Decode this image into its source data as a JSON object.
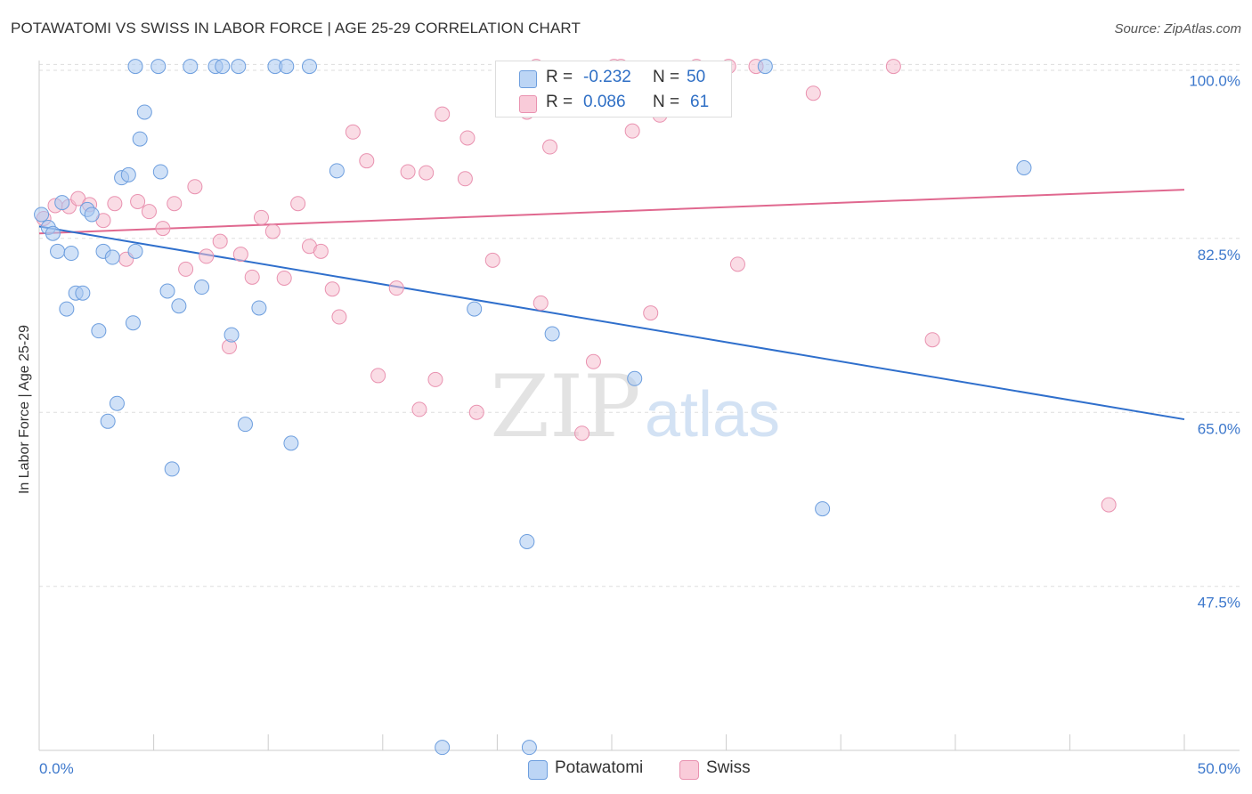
{
  "header": {
    "title": "POTAWATOMI VS SWISS IN LABOR FORCE | AGE 25-29 CORRELATION CHART",
    "source": "Source: ZipAtlas.com"
  },
  "watermark": {
    "zip": "ZIP",
    "atlas": "atlas"
  },
  "legend_stats": {
    "row1": {
      "r_label": "R =",
      "r_value": "-0.232",
      "n_label": "N =",
      "n_value": "50"
    },
    "row2": {
      "r_label": "R =",
      "r_value": "0.086",
      "n_label": "N =",
      "n_value": "61"
    }
  },
  "bottom_legend": {
    "item1": "Potawatomi",
    "item2": "Swiss"
  },
  "colors": {
    "blue_fill": "#a9c8f0",
    "blue_stroke": "#6d9ede",
    "blue_line": "#2f6fcc",
    "pink_fill": "#f6bfd0",
    "pink_stroke": "#e992b0",
    "pink_line": "#e0688f",
    "tick_label": "#3d78cc",
    "grid": "#dddddd"
  },
  "chart_data": {
    "type": "scatter",
    "title": "POTAWATOMI VS SWISS IN LABOR FORCE | AGE 25-29 CORRELATION CHART",
    "xlabel": "",
    "ylabel": "In Labor Force | Age 25-29",
    "xlim": [
      0,
      50
    ],
    "ylim": [
      31,
      102
    ],
    "x_tick_labels": [
      "0.0%",
      "50.0%"
    ],
    "y_ticks": [
      47.5,
      65.0,
      82.5,
      100.0
    ],
    "y_tick_labels": [
      "47.5%",
      "65.0%",
      "82.5%",
      "100.0%"
    ],
    "grid": "horizontal dashed",
    "legend_position": "bottom-center",
    "series": [
      {
        "name": "Potawatomi",
        "r": -0.232,
        "n": 50,
        "trend": {
          "x": [
            0,
            50
          ],
          "y": [
            83.7,
            64.3
          ]
        },
        "points": [
          [
            0.1,
            84.9
          ],
          [
            0.4,
            83.6
          ],
          [
            0.6,
            83.0
          ],
          [
            0.8,
            81.2
          ],
          [
            1.0,
            86.1
          ],
          [
            1.2,
            75.4
          ],
          [
            1.4,
            81.0
          ],
          [
            1.6,
            77.0
          ],
          [
            1.9,
            77.0
          ],
          [
            2.1,
            85.4
          ],
          [
            2.3,
            84.9
          ],
          [
            2.6,
            73.2
          ],
          [
            2.8,
            81.2
          ],
          [
            3.0,
            64.1
          ],
          [
            3.2,
            80.6
          ],
          [
            3.4,
            65.9
          ],
          [
            3.6,
            88.6
          ],
          [
            3.9,
            88.9
          ],
          [
            4.1,
            74.0
          ],
          [
            4.4,
            92.5
          ],
          [
            4.6,
            95.2
          ],
          [
            4.2,
            81.2
          ],
          [
            5.3,
            89.2
          ],
          [
            5.6,
            77.2
          ],
          [
            5.8,
            59.3
          ],
          [
            6.1,
            75.7
          ],
          [
            7.1,
            77.6
          ],
          [
            8.4,
            72.8
          ],
          [
            9.0,
            63.8
          ],
          [
            9.6,
            75.5
          ],
          [
            11.0,
            61.9
          ],
          [
            13.0,
            89.3
          ],
          [
            17.6,
            31.3
          ],
          [
            19.0,
            75.4
          ],
          [
            21.3,
            52.0
          ],
          [
            21.4,
            31.3
          ],
          [
            22.4,
            72.9
          ],
          [
            26.0,
            68.4
          ],
          [
            34.2,
            55.3
          ],
          [
            43.0,
            89.6
          ],
          [
            4.2,
            99.8
          ],
          [
            5.2,
            99.8
          ],
          [
            6.6,
            99.8
          ],
          [
            7.7,
            99.8
          ],
          [
            8.0,
            99.8
          ],
          [
            8.7,
            99.8
          ],
          [
            10.3,
            99.8
          ],
          [
            10.8,
            99.8
          ],
          [
            11.8,
            99.8
          ],
          [
            31.7,
            99.8
          ]
        ]
      },
      {
        "name": "Swiss",
        "r": 0.086,
        "n": 61,
        "trend": {
          "x": [
            0,
            50
          ],
          "y": [
            83.0,
            87.4
          ]
        },
        "points": [
          [
            0.2,
            84.5
          ],
          [
            0.7,
            85.8
          ],
          [
            1.3,
            85.7
          ],
          [
            1.7,
            86.5
          ],
          [
            2.2,
            85.9
          ],
          [
            2.8,
            84.3
          ],
          [
            3.3,
            86.0
          ],
          [
            3.8,
            80.4
          ],
          [
            4.3,
            86.2
          ],
          [
            4.8,
            85.2
          ],
          [
            5.4,
            83.5
          ],
          [
            5.9,
            86.0
          ],
          [
            6.4,
            79.4
          ],
          [
            6.8,
            87.7
          ],
          [
            7.3,
            80.7
          ],
          [
            7.9,
            82.2
          ],
          [
            8.3,
            71.6
          ],
          [
            8.8,
            80.9
          ],
          [
            9.3,
            78.6
          ],
          [
            9.7,
            84.6
          ],
          [
            10.2,
            83.2
          ],
          [
            10.7,
            78.5
          ],
          [
            11.3,
            86.0
          ],
          [
            11.8,
            81.7
          ],
          [
            12.3,
            81.2
          ],
          [
            12.8,
            77.4
          ],
          [
            13.1,
            74.6
          ],
          [
            13.7,
            93.2
          ],
          [
            14.3,
            90.3
          ],
          [
            14.8,
            68.7
          ],
          [
            15.6,
            77.5
          ],
          [
            16.1,
            89.2
          ],
          [
            16.6,
            65.3
          ],
          [
            16.9,
            89.1
          ],
          [
            17.3,
            68.3
          ],
          [
            17.6,
            95.0
          ],
          [
            18.7,
            92.6
          ],
          [
            18.6,
            88.5
          ],
          [
            19.1,
            65.0
          ],
          [
            19.8,
            80.3
          ],
          [
            20.7,
            97.7
          ],
          [
            21.3,
            95.2
          ],
          [
            21.9,
            76.0
          ],
          [
            22.3,
            91.7
          ],
          [
            23.7,
            62.9
          ],
          [
            24.2,
            70.1
          ],
          [
            25.9,
            93.3
          ],
          [
            26.7,
            75.0
          ],
          [
            26.8,
            96.5
          ],
          [
            27.1,
            94.9
          ],
          [
            30.5,
            79.9
          ],
          [
            31.3,
            99.8
          ],
          [
            33.8,
            97.1
          ],
          [
            37.3,
            99.8
          ],
          [
            39.0,
            72.3
          ],
          [
            46.7,
            55.7
          ],
          [
            21.7,
            99.8
          ],
          [
            25.1,
            99.8
          ],
          [
            25.4,
            99.8
          ],
          [
            28.7,
            99.8
          ],
          [
            30.1,
            99.8
          ]
        ]
      }
    ]
  }
}
